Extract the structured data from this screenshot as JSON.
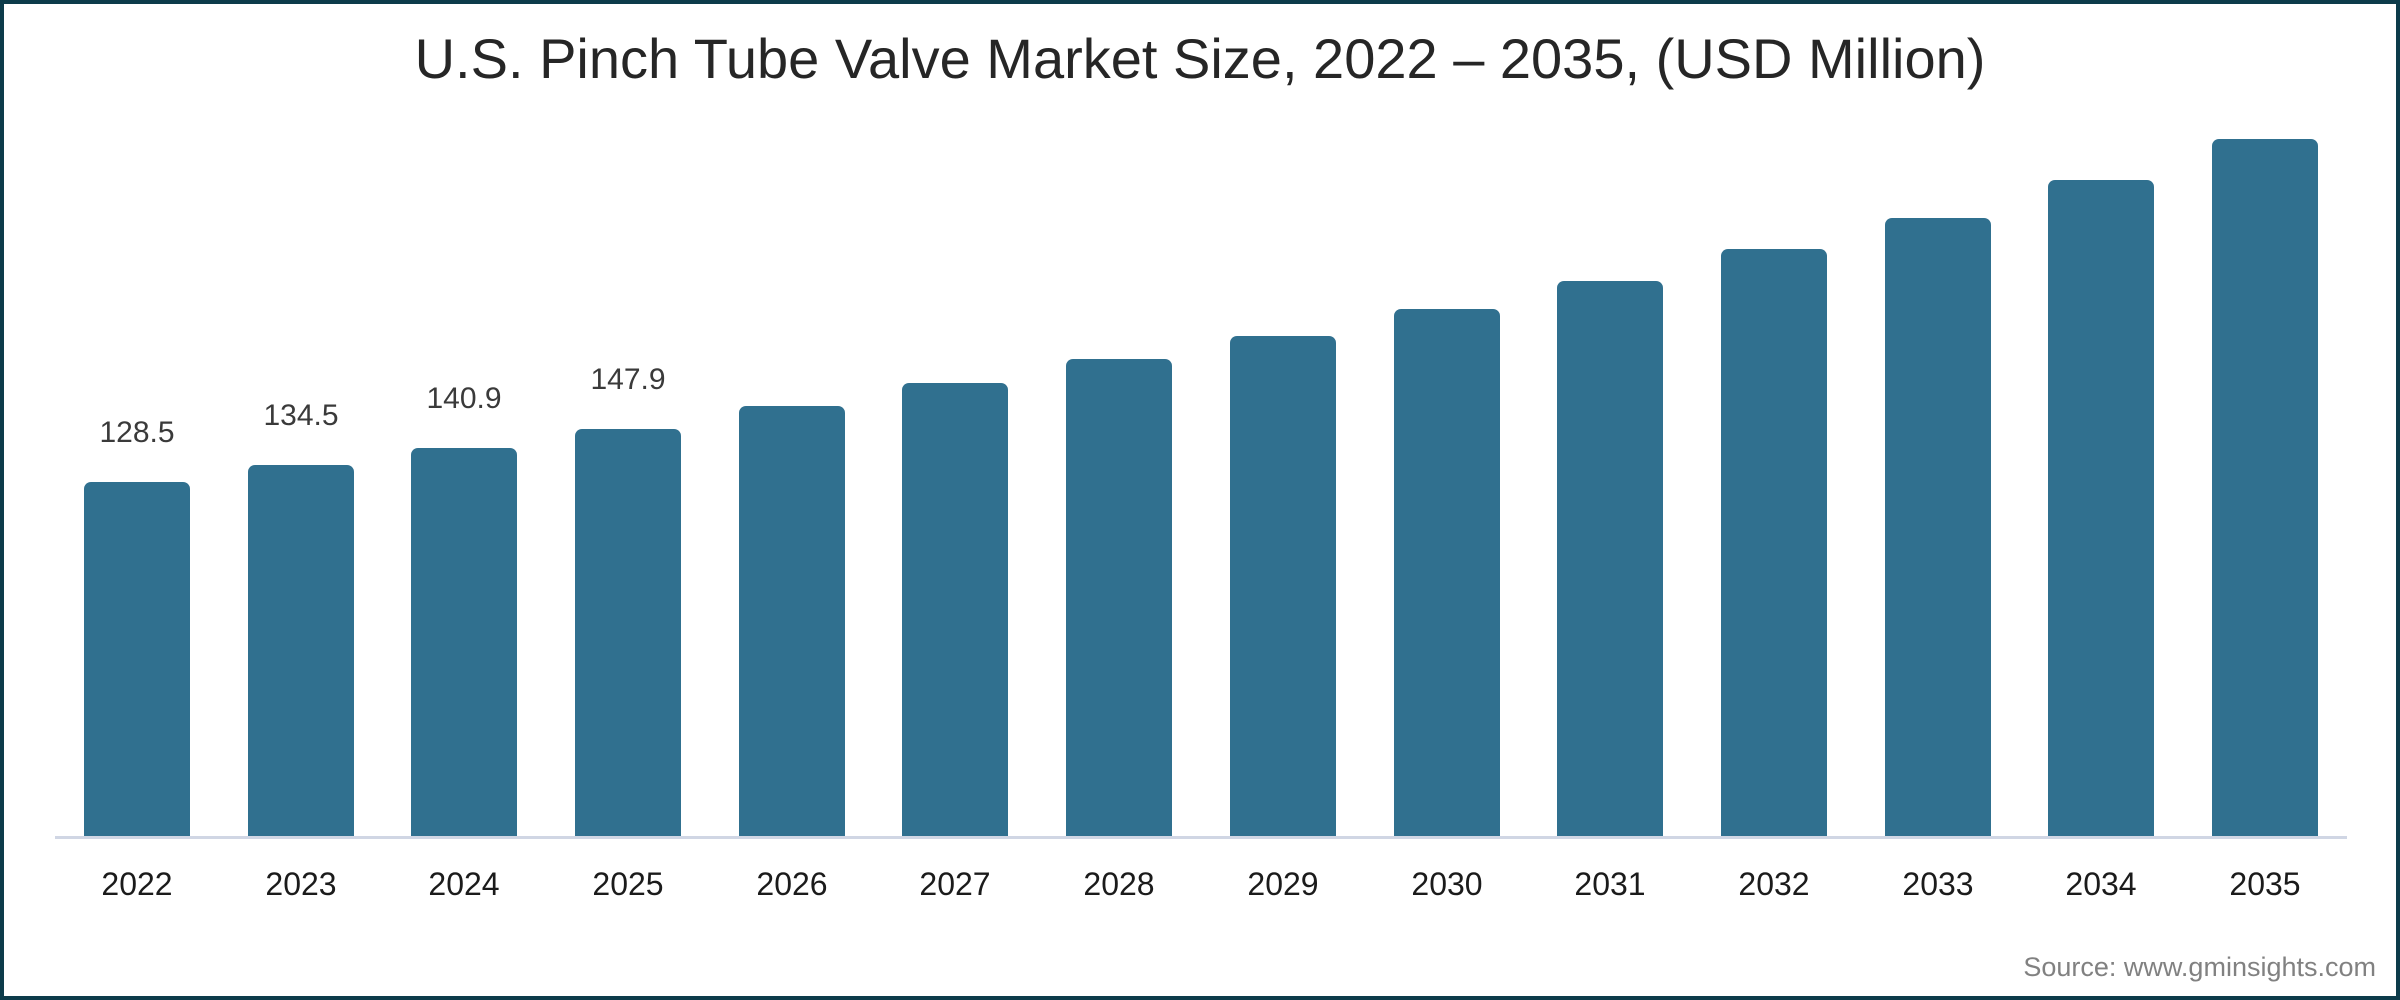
{
  "title": "U.S. Pinch Tube Valve Market Size, 2022 – 2035, (USD Million)",
  "source": "Source: www.gminsights.com",
  "colors": {
    "bar": "#30708F",
    "frame_border": "#0D3B4A",
    "axis_line": "#D0D6E4",
    "title_text": "#262626",
    "data_label_text": "#3A3A3A",
    "year_text": "#1B1B1B",
    "source_text": "#818181",
    "background": "#FFFFFF"
  },
  "chart_data": {
    "type": "bar",
    "title": "U.S. Pinch Tube Valve Market Size, 2022 – 2035, (USD Million)",
    "xlabel": "",
    "ylabel": "",
    "categories": [
      "2022",
      "2023",
      "2024",
      "2025",
      "2026",
      "2027",
      "2028",
      "2029",
      "2030",
      "2031",
      "2032",
      "2033",
      "2034",
      "2035"
    ],
    "values": [
      128.5,
      134.5,
      140.9,
      147.9,
      156.0,
      164.5,
      173.0,
      181.5,
      191.3,
      201.5,
      213.0,
      224.5,
      238.2,
      253.0
    ],
    "data_labels": [
      "128.5",
      "134.5",
      "140.9",
      "147.9",
      "",
      "",
      "",
      "",
      "",
      "",
      "",
      "",
      "",
      ""
    ],
    "ylim": [
      0,
      260
    ],
    "grid": false,
    "legend": false,
    "axis_baseline": "bottom"
  }
}
